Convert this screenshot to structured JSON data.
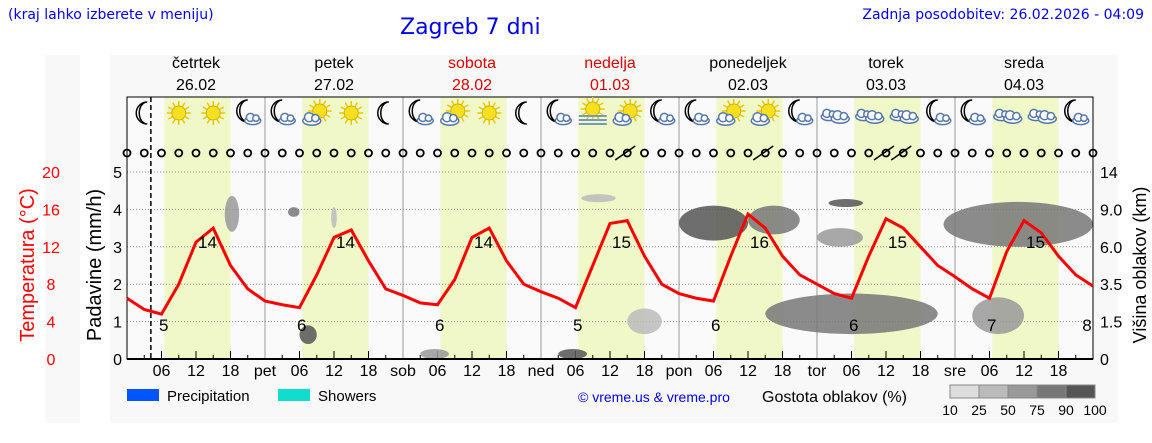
{
  "header": {
    "hint": "(kraj lahko izberete v meniju)",
    "title": "Zagreb 7 dni",
    "updated": "Zadnja posodobitev: 26.02.2026 - 04:09"
  },
  "chart_data": {
    "type": "line",
    "days": [
      {
        "name": "četrtek",
        "date": "26.02",
        "weekend": false,
        "abbr": ""
      },
      {
        "name": "petek",
        "date": "27.02",
        "weekend": false,
        "abbr": "pet"
      },
      {
        "name": "sobota",
        "date": "28.02",
        "weekend": true,
        "abbr": "sob"
      },
      {
        "name": "nedelja",
        "date": "01.03",
        "weekend": true,
        "abbr": "ned"
      },
      {
        "name": "ponedeljek",
        "date": "02.03",
        "weekend": false,
        "abbr": "pon"
      },
      {
        "name": "torek",
        "date": "03.03",
        "weekend": false,
        "abbr": "tor"
      },
      {
        "name": "sreda",
        "date": "04.03",
        "weekend": false,
        "abbr": "sre"
      }
    ],
    "hour_ticks": [
      "06",
      "12",
      "18"
    ],
    "now": "26.02 04:09",
    "left_axis": {
      "label": "Temperatura (°C)",
      "ticks": [
        0,
        4,
        8,
        12,
        16,
        20
      ],
      "range": [
        0,
        20
      ],
      "color": "#ff0000"
    },
    "precip_axis": {
      "label": "Padavine (mm/h)",
      "ticks": [
        0,
        1,
        2,
        3,
        4,
        5
      ],
      "range": [
        0,
        5
      ]
    },
    "right_axis": {
      "label": "Višina oblakov (km)",
      "ticks": [
        "0",
        "1.5",
        "3.5",
        "6.0",
        "9.0",
        "14"
      ]
    },
    "temperature_3h": [
      6.5,
      5.3,
      4.8,
      8,
      12.5,
      14,
      10,
      7.5,
      6.2,
      5.8,
      5.5,
      9,
      13,
      13.8,
      10.5,
      7.5,
      6.8,
      6,
      5.8,
      8.5,
      13,
      14,
      10.5,
      8,
      7.2,
      6.5,
      5.5,
      10,
      14.5,
      14.8,
      11,
      8,
      7,
      6.5,
      6.2,
      11,
      15.5,
      14,
      11,
      9,
      8,
      7,
      6.5,
      11,
      15,
      14,
      12,
      10,
      8.8,
      7.5,
      6.5,
      11.5,
      14.8,
      13.5,
      11,
      9,
      7.8
    ],
    "temp_labels": [
      [
        "26.02 05:00",
        "5"
      ],
      [
        "26.02 14:00",
        "14"
      ],
      [
        "27.02 05:00",
        "6"
      ],
      [
        "27.02 14:00",
        "14"
      ],
      [
        "28.02 05:00",
        "6"
      ],
      [
        "28.02 14:00",
        "14"
      ],
      [
        "01.03 05:00",
        "5"
      ],
      [
        "01.03 14:00",
        "15"
      ],
      [
        "02.03 05:00",
        "6"
      ],
      [
        "02.03 14:00",
        "16"
      ],
      [
        "03.03 05:00",
        "6"
      ],
      [
        "03.03 14:00",
        "15"
      ],
      [
        "04.03 05:00",
        "7"
      ],
      [
        "04.03 14:00",
        "15"
      ],
      [
        "04.03 24:00",
        "8"
      ]
    ],
    "daylight": [
      "06:30",
      "18:00"
    ],
    "icons": [
      "moon",
      "sun",
      "sun",
      "moon-cloud",
      "moon-cloud",
      "sun-cloud",
      "sun",
      "moon",
      "moon-cloud",
      "sun-cloud",
      "sun",
      "moon",
      "moon-cloud",
      "sun-fog",
      "sun-cloud",
      "moon-cloud",
      "moon-cloud",
      "sun-cloud",
      "sun-cloud",
      "moon-cloud",
      "clouds",
      "clouds",
      "clouds",
      "moon-cloud",
      "moon-cloud",
      "clouds",
      "clouds",
      "moon-cloud"
    ],
    "wind_barbs": [
      "01.03 15:00",
      "02.03 15:00",
      "03.03 12:00",
      "03.03 15:00"
    ],
    "cloud_density": [
      {
        "from": "26.02 17:00",
        "to": "26.02 19:30",
        "km": [
          7.2,
          10.8
        ],
        "pct": 50
      },
      {
        "from": "27.02 04:00",
        "to": "27.02 06:00",
        "km": [
          8.4,
          9.3
        ],
        "pct": 75
      },
      {
        "from": "27.02 11:30",
        "to": "27.02 12:30",
        "km": [
          7.5,
          9.3
        ],
        "pct": 25
      },
      {
        "from": "27.02 06:00",
        "to": "27.02 09:00",
        "km": [
          0.6,
          1.35
        ],
        "pct": 90
      },
      {
        "from": "01.03 07:00",
        "to": "01.03 13:00",
        "km": [
          10,
          11
        ],
        "pct": 25
      },
      {
        "from": "02.03 00:00",
        "to": "02.03 12:00",
        "km": [
          6.5,
          9.5
        ],
        "pct": 90
      },
      {
        "from": "02.03 12:00",
        "to": "02.03 21:00",
        "km": [
          7,
          9.5
        ],
        "pct": 75
      },
      {
        "from": "03.03 00:00",
        "to": "03.03 08:00",
        "km": [
          6,
          7.5
        ],
        "pct": 50
      },
      {
        "from": "03.03 02:00",
        "to": "03.03 08:00",
        "km": [
          9.5,
          10.2
        ],
        "pct": 90
      },
      {
        "from": "02.03 15:00",
        "to": "03.03 21:00",
        "km": [
          1,
          3
        ],
        "pct": 75
      },
      {
        "from": "03.03 22:00",
        "to": "04.03 24:00",
        "km": [
          6,
          10
        ],
        "pct": 75
      },
      {
        "from": "04.03 03:00",
        "to": "04.03 12:00",
        "km": [
          1,
          2.8
        ],
        "pct": 50
      },
      {
        "from": "28.02 03:00",
        "to": "28.02 08:00",
        "km": [
          0,
          0.4
        ],
        "pct": 50
      },
      {
        "from": "01.03 03:00",
        "to": "01.03 08:00",
        "km": [
          0,
          0.4
        ],
        "pct": 90
      },
      {
        "from": "01.03 15:00",
        "to": "01.03 21:00",
        "km": [
          1,
          2.2
        ],
        "pct": 25
      }
    ],
    "legend": {
      "items": [
        {
          "name": "Precipitation",
          "color": "#0055ff"
        },
        {
          "name": "Showers",
          "color": "#11ddcc"
        }
      ],
      "credit": "© vreme.us & vreme.pro",
      "density_label": "Gostota oblakov (%)",
      "density_steps": [
        "10",
        "25",
        "50",
        "75",
        "90",
        "100"
      ],
      "density_colors": [
        "#dddddd",
        "#bbbbbb",
        "#999999",
        "#777777",
        "#555555",
        "#333333"
      ]
    }
  }
}
